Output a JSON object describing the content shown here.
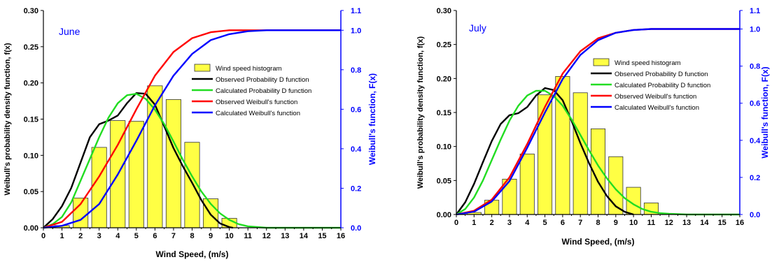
{
  "colors": {
    "histogram_fill": "#ffff44",
    "histogram_stroke": "#333333",
    "observed_pdf": "#000000",
    "calculated_pdf": "#22dd22",
    "observed_cdf": "#ff0000",
    "calculated_cdf": "#0000ff",
    "right_axis": "#0000ff",
    "title": "#0000ff"
  },
  "chart_data": [
    {
      "type": "bar",
      "title": "June",
      "xlabel": "Wind Speed, (m/s)",
      "ylabel": "Weibull's probability density function, f(x)",
      "y2label": "Weibull's function, F(x)",
      "xlim": [
        0,
        16
      ],
      "ylim": [
        0,
        0.3
      ],
      "y2lim": [
        0,
        1.1
      ],
      "xticks": [
        "0",
        "1",
        "2",
        "3",
        "4",
        "5",
        "6",
        "7",
        "8",
        "9",
        "10",
        "11",
        "12",
        "13",
        "14",
        "15",
        "16"
      ],
      "yticks": [
        "0.00",
        "0.05",
        "0.10",
        "0.15",
        "0.20",
        "0.25",
        "0.30"
      ],
      "y2ticks": [
        "0.0",
        "0.2",
        "0.4",
        "0.6",
        "0.8",
        "1.0",
        "1.1"
      ],
      "legend_position": "right",
      "histogram": {
        "name": "Wind speed histogram",
        "x": [
          1,
          2,
          3,
          4,
          5,
          6,
          7,
          8,
          9,
          10
        ],
        "values": [
          0.003,
          0.041,
          0.111,
          0.148,
          0.147,
          0.196,
          0.177,
          0.118,
          0.04,
          0.013
        ]
      },
      "series": [
        {
          "name": "Observed Probability D function",
          "axis": "left",
          "x": [
            0,
            0.5,
            1,
            1.5,
            2,
            2.5,
            3,
            3.5,
            4,
            4.5,
            5,
            5.5,
            6,
            6.5,
            7,
            7.5,
            8,
            8.5,
            9,
            9.5,
            10,
            10.2
          ],
          "y": [
            0,
            0.012,
            0.03,
            0.055,
            0.09,
            0.125,
            0.143,
            0.148,
            0.155,
            0.172,
            0.186,
            0.185,
            0.17,
            0.14,
            0.11,
            0.085,
            0.062,
            0.038,
            0.018,
            0.006,
            0.001,
            0
          ]
        },
        {
          "name": "Calculated Probability D function",
          "axis": "left",
          "x": [
            0,
            0.5,
            1,
            1.5,
            2,
            2.5,
            3,
            3.5,
            4,
            4.5,
            5,
            5.5,
            6,
            6.5,
            7,
            7.5,
            8,
            8.5,
            9,
            9.5,
            10,
            10.5,
            11,
            11.5,
            12,
            13,
            14,
            15,
            16
          ],
          "y": [
            0,
            0.005,
            0.015,
            0.035,
            0.065,
            0.095,
            0.125,
            0.152,
            0.172,
            0.183,
            0.185,
            0.178,
            0.163,
            0.143,
            0.119,
            0.094,
            0.071,
            0.05,
            0.033,
            0.02,
            0.011,
            0.005,
            0.002,
            0.001,
            0,
            0,
            0,
            0,
            0
          ]
        },
        {
          "name": "Observed Weibull's function",
          "axis": "right",
          "x": [
            0,
            1,
            2,
            3,
            4,
            5,
            6,
            7,
            8,
            9,
            10,
            11,
            12,
            13,
            14,
            15,
            16
          ],
          "y": [
            0,
            0.03,
            0.12,
            0.26,
            0.42,
            0.6,
            0.77,
            0.89,
            0.96,
            0.99,
            1.0,
            1.0,
            1.0,
            1.0,
            1.0,
            1.0,
            1.0
          ]
        },
        {
          "name": "Calculated Weibull's function",
          "axis": "right",
          "x": [
            0,
            1,
            2,
            3,
            4,
            5,
            6,
            7,
            8,
            9,
            10,
            11,
            12,
            13,
            14,
            15,
            16
          ],
          "y": [
            0,
            0.01,
            0.04,
            0.12,
            0.27,
            0.44,
            0.62,
            0.77,
            0.88,
            0.95,
            0.98,
            0.995,
            1.0,
            1.0,
            1.0,
            1.0,
            1.0
          ]
        }
      ]
    },
    {
      "type": "bar",
      "title": "July",
      "xlabel": "Wind Speed, (m/s)",
      "ylabel": "Weibull's probability density function, f(x)",
      "y2label": "Weibull's function, F(x)",
      "xlim": [
        0,
        16
      ],
      "ylim": [
        0,
        0.3
      ],
      "y2lim": [
        0,
        1.1
      ],
      "xticks": [
        "0",
        "1",
        "2",
        "3",
        "4",
        "5",
        "6",
        "7",
        "8",
        "9",
        "10",
        "11",
        "12",
        "13",
        "14",
        "15",
        "16"
      ],
      "yticks": [
        "0.00",
        "0.05",
        "0.10",
        "0.15",
        "0.20",
        "0.25",
        "0.30"
      ],
      "y2ticks": [
        "0.0",
        "0.2",
        "0.4",
        "0.6",
        "0.8",
        "1.0",
        "1.1"
      ],
      "legend_position": "right",
      "histogram": {
        "name": "Wind speed histogram",
        "x": [
          1,
          2,
          3,
          4,
          5,
          6,
          7,
          8,
          9,
          10,
          11
        ],
        "values": [
          0.003,
          0.021,
          0.052,
          0.089,
          0.176,
          0.203,
          0.179,
          0.126,
          0.085,
          0.04,
          0.017
        ]
      },
      "series": [
        {
          "name": "Observed Probability D function",
          "axis": "left",
          "x": [
            0,
            0.5,
            1,
            1.5,
            2,
            2.5,
            3,
            3.5,
            4,
            4.5,
            5,
            5.5,
            6,
            6.5,
            7,
            7.5,
            8,
            8.5,
            9,
            9.5,
            10
          ],
          "y": [
            0,
            0.018,
            0.045,
            0.077,
            0.108,
            0.133,
            0.146,
            0.149,
            0.158,
            0.175,
            0.186,
            0.183,
            0.168,
            0.138,
            0.105,
            0.075,
            0.048,
            0.027,
            0.012,
            0.004,
            0
          ]
        },
        {
          "name": "Calculated Probability D function",
          "axis": "left",
          "x": [
            0,
            0.5,
            1,
            1.5,
            2,
            2.5,
            3,
            3.5,
            4,
            4.5,
            5,
            5.5,
            6,
            6.5,
            7,
            7.5,
            8,
            8.5,
            9,
            9.5,
            10,
            10.5,
            11,
            11.5,
            12,
            13,
            14,
            15,
            16
          ],
          "y": [
            0,
            0.008,
            0.025,
            0.05,
            0.08,
            0.11,
            0.138,
            0.16,
            0.175,
            0.182,
            0.182,
            0.174,
            0.16,
            0.14,
            0.117,
            0.094,
            0.072,
            0.053,
            0.037,
            0.024,
            0.015,
            0.008,
            0.004,
            0.002,
            0.001,
            0,
            0,
            0,
            0
          ]
        },
        {
          "name": "Observed Weibull's function",
          "axis": "right",
          "x": [
            0,
            1,
            2,
            3,
            4,
            5,
            6,
            7,
            8,
            9,
            10,
            11,
            12,
            13,
            14,
            15,
            16
          ],
          "y": [
            0,
            0.02,
            0.08,
            0.2,
            0.38,
            0.58,
            0.76,
            0.88,
            0.95,
            0.98,
            0.995,
            1.0,
            1.0,
            1.0,
            1.0,
            1.0,
            1.0
          ]
        },
        {
          "name": "Calculated Weibull's function",
          "axis": "right",
          "x": [
            0,
            1,
            2,
            3,
            4,
            5,
            6,
            7,
            8,
            9,
            10,
            11,
            12,
            13,
            14,
            15,
            16
          ],
          "y": [
            0,
            0.015,
            0.07,
            0.18,
            0.36,
            0.55,
            0.73,
            0.86,
            0.94,
            0.98,
            0.995,
            1.0,
            1.0,
            1.0,
            1.0,
            1.0,
            1.0
          ]
        }
      ]
    }
  ]
}
